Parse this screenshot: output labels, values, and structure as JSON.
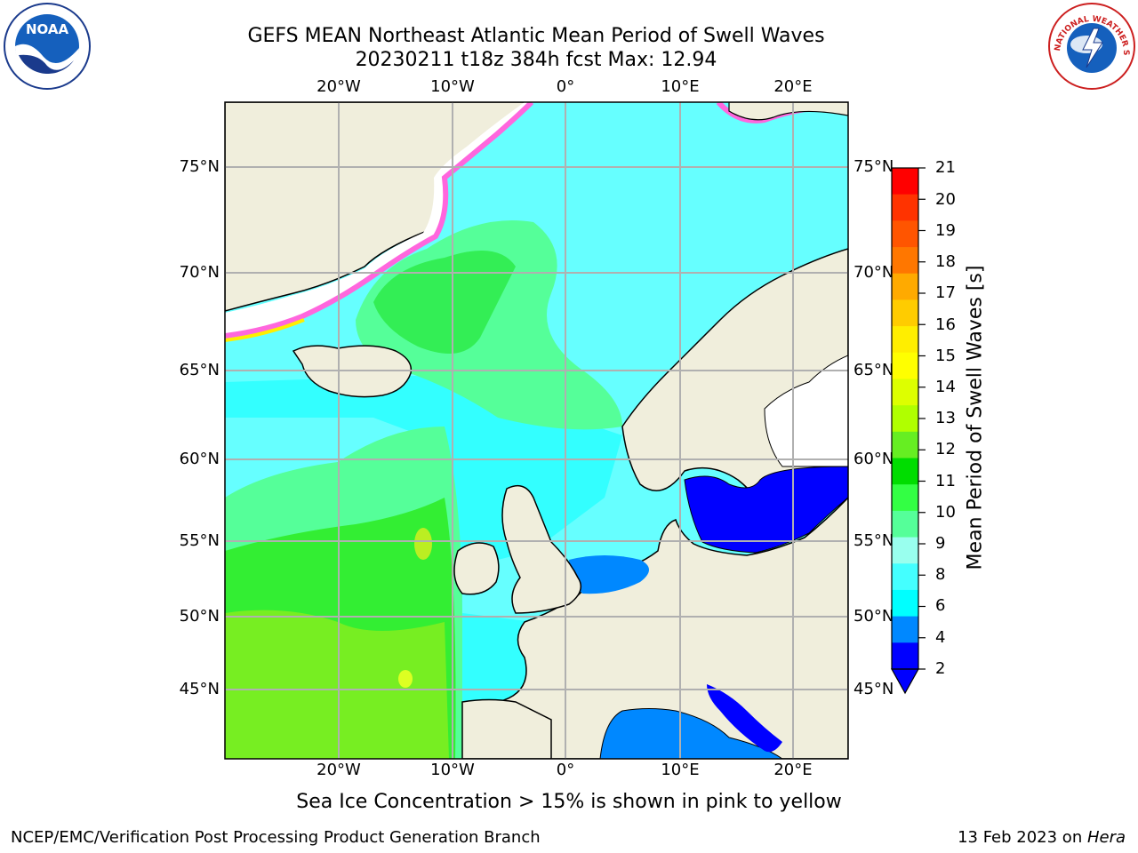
{
  "title_line1": "GEFS MEAN Northeast Atlantic Mean Period of Swell Waves",
  "title_line2": "20230211 t18z 384h fcst   Max: 12.94",
  "map": {
    "lon_labels": [
      "20°W",
      "10°W",
      "0°",
      "10°E",
      "20°E"
    ],
    "lat_labels": [
      "75°N",
      "70°N",
      "65°N",
      "60°N",
      "55°N",
      "50°N",
      "45°N"
    ]
  },
  "colorbar": {
    "label": "Mean Period of Swell Waves [s]",
    "ticks": [
      "21",
      "20",
      "19",
      "18",
      "17",
      "16",
      "15",
      "14",
      "13",
      "12",
      "11",
      "10",
      "9",
      "8",
      "6",
      "4",
      "2"
    ],
    "colors": [
      "#ff0000",
      "#ff3300",
      "#ff5500",
      "#ff7700",
      "#ffaa00",
      "#ffcc00",
      "#ffee00",
      "#ffff00",
      "#ddff00",
      "#b0ff00",
      "#66ee22",
      "#00dd00",
      "#33ff44",
      "#55ff99",
      "#99ffee",
      "#44ffff",
      "#00ffff",
      "#0088ff",
      "#0000ff"
    ]
  },
  "caption": "Sea Ice Concentration > 15% is shown in pink to yellow",
  "footer_left": "NCEP/EMC/Verification Post Processing Product Generation Branch",
  "footer_right_date": "13 Feb 2023 on ",
  "footer_right_host": "Hera",
  "logos": {
    "left": "NOAA",
    "right": "NATIONAL WEATHER SERVICE"
  }
}
